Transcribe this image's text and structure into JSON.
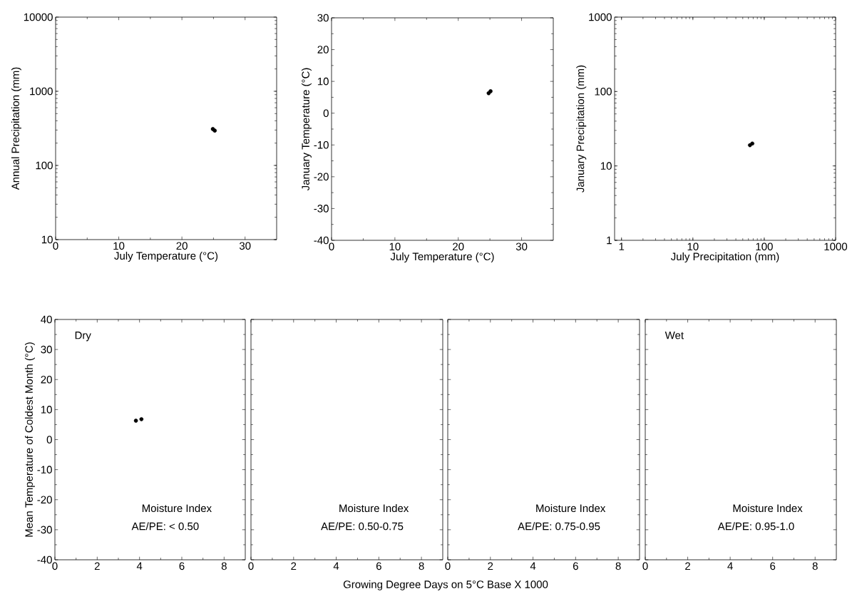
{
  "chart_data": [
    {
      "type": "scatter",
      "xlabel": "July Temperature (°C)",
      "ylabel": "Annual Precipitation (mm)",
      "log": "y",
      "marker": "circle",
      "color": "#000000",
      "x": [
        24.9,
        25.2
      ],
      "values": [
        310,
        295
      ],
      "xlim": [
        0,
        35
      ],
      "xticks": [
        0,
        10,
        20,
        30
      ],
      "ylim": [
        10,
        10000
      ],
      "yticks": [
        10,
        100,
        1000,
        10000
      ]
    },
    {
      "type": "scatter",
      "xlabel": "July Temperature (°C)",
      "ylabel": "January Temperature (°C)",
      "marker": "circle",
      "color": "#000000",
      "x": [
        24.8,
        25.1
      ],
      "values": [
        6.3,
        6.9
      ],
      "xlim": [
        0,
        35
      ],
      "xticks": [
        0,
        10,
        20,
        30
      ],
      "ylim": [
        -40,
        30
      ],
      "yticks": [
        -40,
        -30,
        -20,
        -10,
        0,
        10,
        20,
        30
      ]
    },
    {
      "type": "scatter",
      "xlabel": "July Precipitation (mm)",
      "ylabel": "January Precipitation (mm)",
      "log": "xy",
      "marker": "circle",
      "color": "#000000",
      "x": [
        63,
        68
      ],
      "values": [
        19,
        20
      ],
      "xlim": [
        0.8,
        1000
      ],
      "xticks": [
        1,
        10,
        100,
        1000
      ],
      "ylim": [
        1,
        1000
      ],
      "yticks": [
        1,
        10,
        100,
        1000
      ]
    },
    {
      "type": "scatter",
      "ylabel": "Mean Temperature of Coldest Month (°C)",
      "marker": "circle",
      "color": "#000000",
      "x": [
        3.83,
        4.09
      ],
      "values": [
        6.3,
        6.8
      ],
      "xlim": [
        0,
        9
      ],
      "xticks": [
        0,
        2,
        4,
        6,
        8
      ],
      "ylim": [
        -40,
        40
      ],
      "yticks": [
        -40,
        -30,
        -20,
        -10,
        0,
        10,
        20,
        30,
        40
      ],
      "annotations": [
        "Dry",
        "Moisture Index",
        "AE/PE: < 0.50"
      ]
    },
    {
      "type": "scatter",
      "xlabel": "Growing Degree Days on 5°C Base X 1000",
      "xlim": [
        0,
        9
      ],
      "xticks": [
        0,
        2,
        4,
        6,
        8
      ],
      "ylim": [
        -40,
        40
      ],
      "yticks": [
        -40,
        -30,
        -20,
        -10,
        0,
        10,
        20,
        30,
        40
      ],
      "tick_labels": "x",
      "annotations": [
        "Moisture Index",
        "AE/PE: 0.50-0.75"
      ]
    },
    {
      "type": "scatter",
      "xlim": [
        0,
        9
      ],
      "xticks": [
        0,
        2,
        4,
        6,
        8
      ],
      "ylim": [
        -40,
        40
      ],
      "yticks": [
        -40,
        -30,
        -20,
        -10,
        0,
        10,
        20,
        30,
        40
      ],
      "tick_labels": "x",
      "annotations": [
        "Moisture Index",
        "AE/PE: 0.75-0.95"
      ]
    },
    {
      "type": "scatter",
      "xlim": [
        0,
        9
      ],
      "xticks": [
        0,
        2,
        4,
        6,
        8
      ],
      "ylim": [
        -40,
        40
      ],
      "yticks": [
        -40,
        -30,
        -20,
        -10,
        0,
        10,
        20,
        30,
        40
      ],
      "tick_labels": "x",
      "annotations": [
        "Wet",
        "Moisture Index",
        "AE/PE: 0.95-1.0"
      ]
    }
  ]
}
